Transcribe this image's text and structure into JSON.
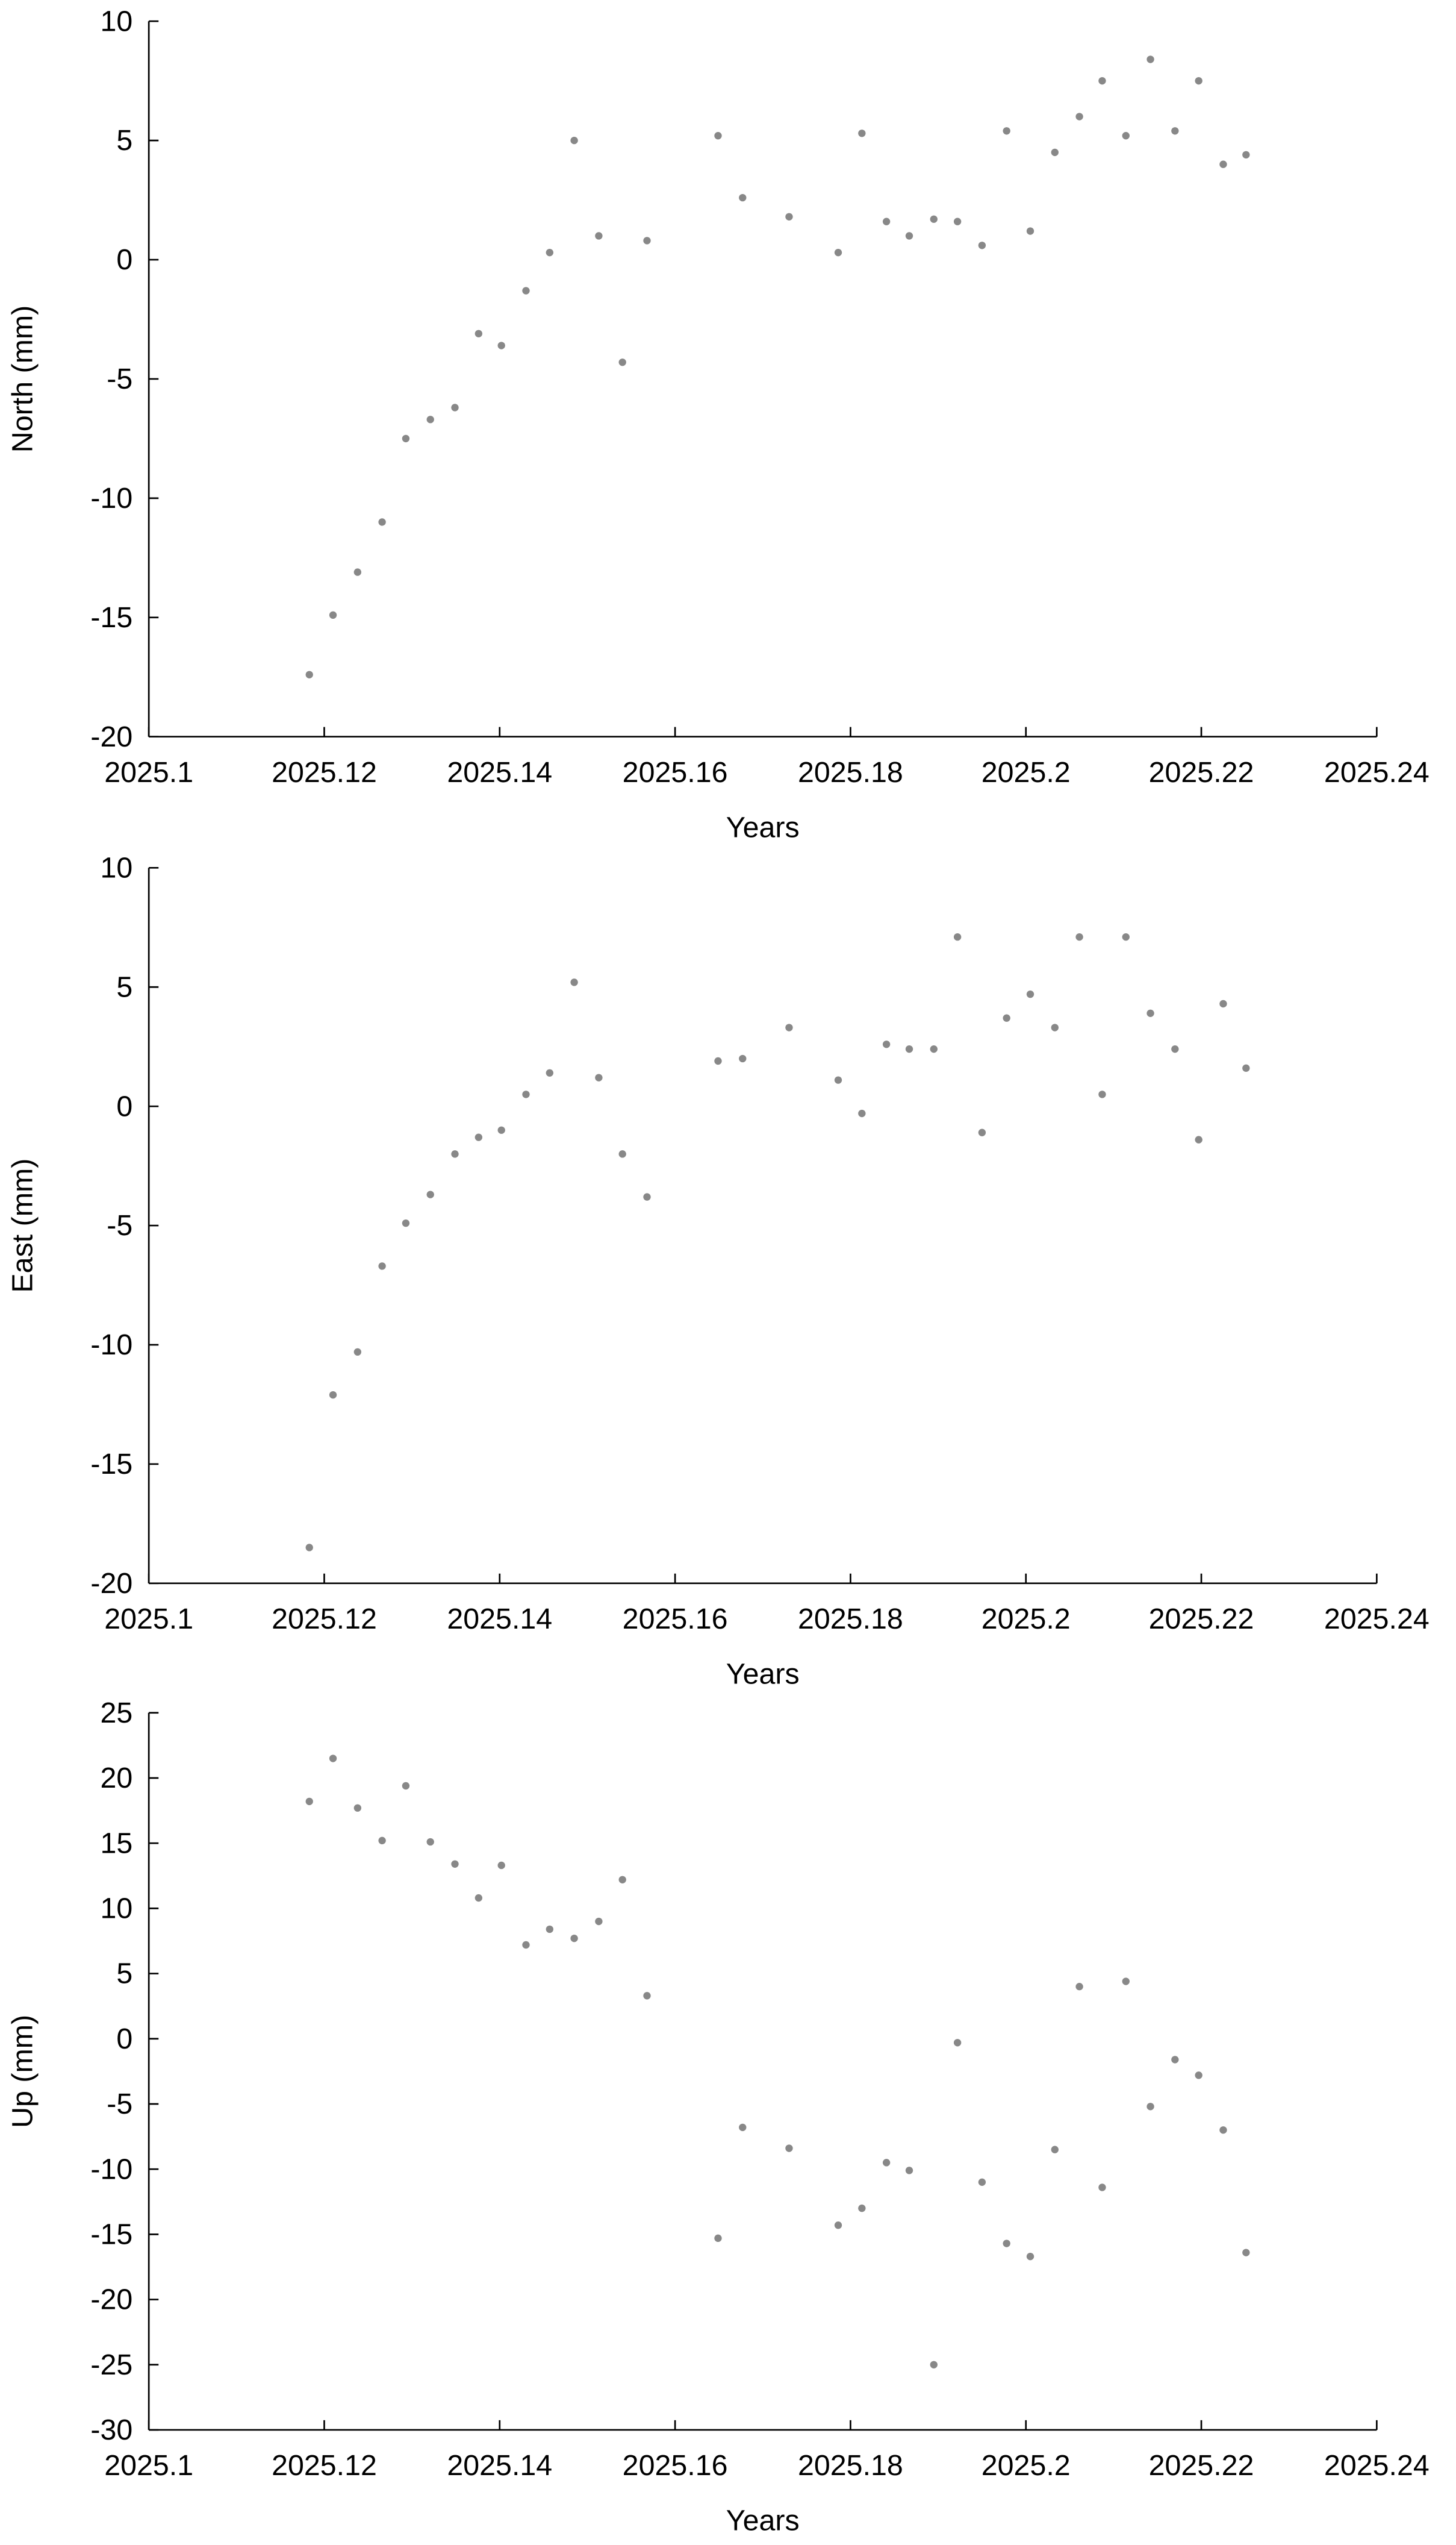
{
  "chart_data": [
    {
      "type": "scatter",
      "xlabel": "Years",
      "ylabel": "North (mm)",
      "color": "#888888",
      "x": [
        2025.1183,
        2025.121,
        2025.1238,
        2025.1266,
        2025.1293,
        2025.1321,
        2025.1349,
        2025.1376,
        2025.1402,
        2025.143,
        2025.1457,
        2025.1485,
        2025.1513,
        2025.154,
        2025.1568,
        2025.1649,
        2025.1677,
        2025.173,
        2025.1786,
        2025.1813,
        2025.1841,
        2025.1867,
        2025.1895,
        2025.1922,
        2025.195,
        2025.1978,
        2025.2005,
        2025.2033,
        2025.2061,
        2025.2087,
        2025.2114,
        2025.2142,
        2025.217,
        2025.2197,
        2025.2225,
        2025.2251
      ],
      "values": [
        -17.4,
        -14.9,
        -13.1,
        -11.0,
        -7.5,
        -6.7,
        -6.2,
        -3.1,
        -3.6,
        -1.3,
        0.3,
        5.0,
        1.0,
        -4.3,
        0.8,
        5.2,
        2.6,
        1.8,
        0.3,
        5.3,
        1.6,
        1.0,
        1.7,
        1.6,
        0.6,
        5.4,
        1.2,
        4.5,
        6.0,
        7.5,
        5.2,
        8.4,
        5.4,
        7.5,
        4.0,
        4.4
      ],
      "xlim": [
        2025.1,
        2025.24
      ],
      "xticks": [
        2025.1,
        2025.12,
        2025.14,
        2025.16,
        2025.18,
        2025.2,
        2025.22,
        2025.24
      ],
      "ylim": [
        -20,
        10
      ],
      "yticks": [
        -20,
        -15,
        -10,
        -5,
        0,
        5,
        10
      ]
    },
    {
      "type": "scatter",
      "xlabel": "Years",
      "ylabel": "East (mm)",
      "color": "#888888",
      "x": [
        2025.1183,
        2025.121,
        2025.1238,
        2025.1266,
        2025.1293,
        2025.1321,
        2025.1349,
        2025.1376,
        2025.1402,
        2025.143,
        2025.1457,
        2025.1485,
        2025.1513,
        2025.154,
        2025.1568,
        2025.1649,
        2025.1677,
        2025.173,
        2025.1786,
        2025.1813,
        2025.1841,
        2025.1867,
        2025.1895,
        2025.1922,
        2025.195,
        2025.1978,
        2025.2005,
        2025.2033,
        2025.2061,
        2025.2087,
        2025.2114,
        2025.2142,
        2025.217,
        2025.2197,
        2025.2225,
        2025.2251
      ],
      "values": [
        -18.5,
        -12.1,
        -10.3,
        -6.7,
        -4.9,
        -3.7,
        -2.0,
        -1.3,
        -1.0,
        0.5,
        1.4,
        5.2,
        1.2,
        -2.0,
        -3.8,
        1.9,
        2.0,
        3.3,
        1.1,
        -0.3,
        2.6,
        2.4,
        2.4,
        7.1,
        -1.1,
        3.7,
        4.7,
        3.3,
        7.1,
        0.5,
        7.1,
        3.9,
        2.4,
        -1.4,
        4.3,
        1.6
      ],
      "xlim": [
        2025.1,
        2025.24
      ],
      "xticks": [
        2025.1,
        2025.12,
        2025.14,
        2025.16,
        2025.18,
        2025.2,
        2025.22,
        2025.24
      ],
      "ylim": [
        -20,
        10
      ],
      "yticks": [
        -20,
        -15,
        -10,
        -5,
        0,
        5,
        10
      ]
    },
    {
      "type": "scatter",
      "xlabel": "Years",
      "ylabel": "Up (mm)",
      "color": "#888888",
      "x": [
        2025.1183,
        2025.121,
        2025.1238,
        2025.1266,
        2025.1293,
        2025.1321,
        2025.1349,
        2025.1376,
        2025.1402,
        2025.143,
        2025.1457,
        2025.1485,
        2025.1513,
        2025.154,
        2025.1568,
        2025.1649,
        2025.1677,
        2025.173,
        2025.1786,
        2025.1813,
        2025.1841,
        2025.1867,
        2025.1895,
        2025.1922,
        2025.195,
        2025.1978,
        2025.2005,
        2025.2033,
        2025.2061,
        2025.2087,
        2025.2114,
        2025.2142,
        2025.217,
        2025.2197,
        2025.2225,
        2025.2251
      ],
      "values": [
        18.2,
        21.5,
        17.7,
        15.2,
        19.4,
        15.1,
        13.4,
        10.8,
        13.3,
        7.2,
        8.4,
        7.7,
        9.0,
        12.2,
        3.3,
        -15.3,
        -6.8,
        -8.4,
        -14.3,
        -13.0,
        -9.5,
        -10.1,
        -25.0,
        -0.3,
        -11.0,
        -15.7,
        -16.7,
        -8.5,
        4.0,
        -11.4,
        4.4,
        -5.2,
        -1.6,
        -2.8,
        -7.0,
        -16.4
      ],
      "xlim": [
        2025.1,
        2025.24
      ],
      "xticks": [
        2025.1,
        2025.12,
        2025.14,
        2025.16,
        2025.18,
        2025.2,
        2025.22,
        2025.24
      ],
      "ylim": [
        -30,
        25
      ],
      "yticks": [
        -30,
        -25,
        -20,
        -15,
        -10,
        -5,
        0,
        5,
        10,
        15,
        20,
        25
      ]
    }
  ]
}
